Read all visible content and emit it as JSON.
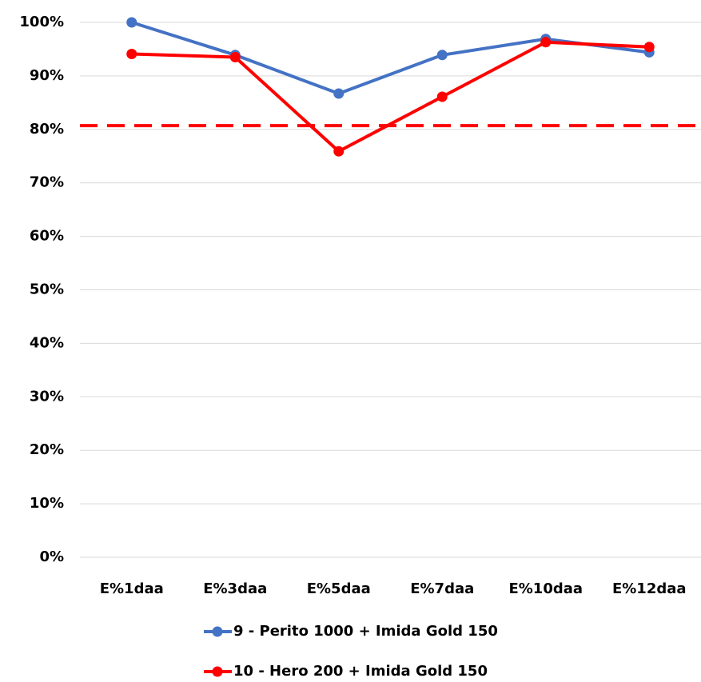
{
  "chart_data": {
    "type": "line",
    "categories": [
      "E%1daa",
      "E%3daa",
      "E%5daa",
      "E%7daa",
      "E%10daa",
      "E%12daa"
    ],
    "series": [
      {
        "name": "9 - Perito 1000 + Imida Gold 150",
        "color": "#4472c4",
        "values": [
          100,
          93.9,
          86.7,
          93.9,
          96.9,
          94.4
        ]
      },
      {
        "name": "10 - Hero 200 + Imida Gold 150",
        "color": "#ff0000",
        "values": [
          94.1,
          93.5,
          75.9,
          86.1,
          96.3,
          95.4
        ]
      }
    ],
    "reference_line": {
      "value": 80.7,
      "color": "#ff0000"
    },
    "ylim": [
      0,
      100
    ],
    "yticks": [
      {
        "value": 0,
        "label": "0%"
      },
      {
        "value": 10,
        "label": "10%"
      },
      {
        "value": 20,
        "label": "20%"
      },
      {
        "value": 30,
        "label": "30%"
      },
      {
        "value": 40,
        "label": "40%"
      },
      {
        "value": 50,
        "label": "50%"
      },
      {
        "value": 60,
        "label": "60%"
      },
      {
        "value": 70,
        "label": "70%"
      },
      {
        "value": 80,
        "label": "80%"
      },
      {
        "value": 90,
        "label": "90%"
      },
      {
        "value": 100,
        "label": "100%"
      }
    ],
    "grid": true,
    "legend": "bottom"
  }
}
